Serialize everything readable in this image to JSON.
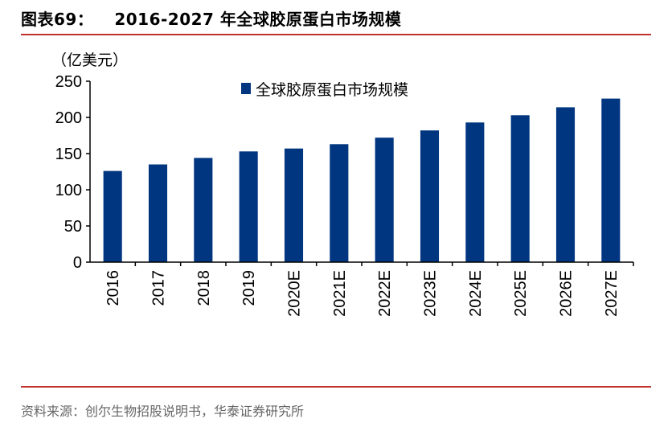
{
  "header": {
    "figure_number": "图表69：",
    "figure_title": "2016-2027 年全球胶原蛋白市场规模"
  },
  "source": "资料来源：创尔生物招股说明书，华泰证券研究所",
  "colors": {
    "bar": "#003580",
    "rule": "#c0302e"
  },
  "chart_data": {
    "type": "bar",
    "title": "2016-2027 年全球胶原蛋白市场规模",
    "unit_label": "（亿美元）",
    "legend": "全球胶原蛋白市场规模",
    "categories": [
      "2016",
      "2017",
      "2018",
      "2019",
      "2020E",
      "2021E",
      "2022E",
      "2023E",
      "2024E",
      "2025E",
      "2026E",
      "2027E"
    ],
    "values": [
      126,
      135,
      144,
      153,
      157,
      163,
      172,
      182,
      193,
      203,
      214,
      226
    ],
    "y_ticks": [
      "0",
      "50",
      "100",
      "150",
      "200",
      "250"
    ],
    "ylim": [
      0,
      250
    ],
    "grid": false,
    "legend_position": "top-left"
  }
}
